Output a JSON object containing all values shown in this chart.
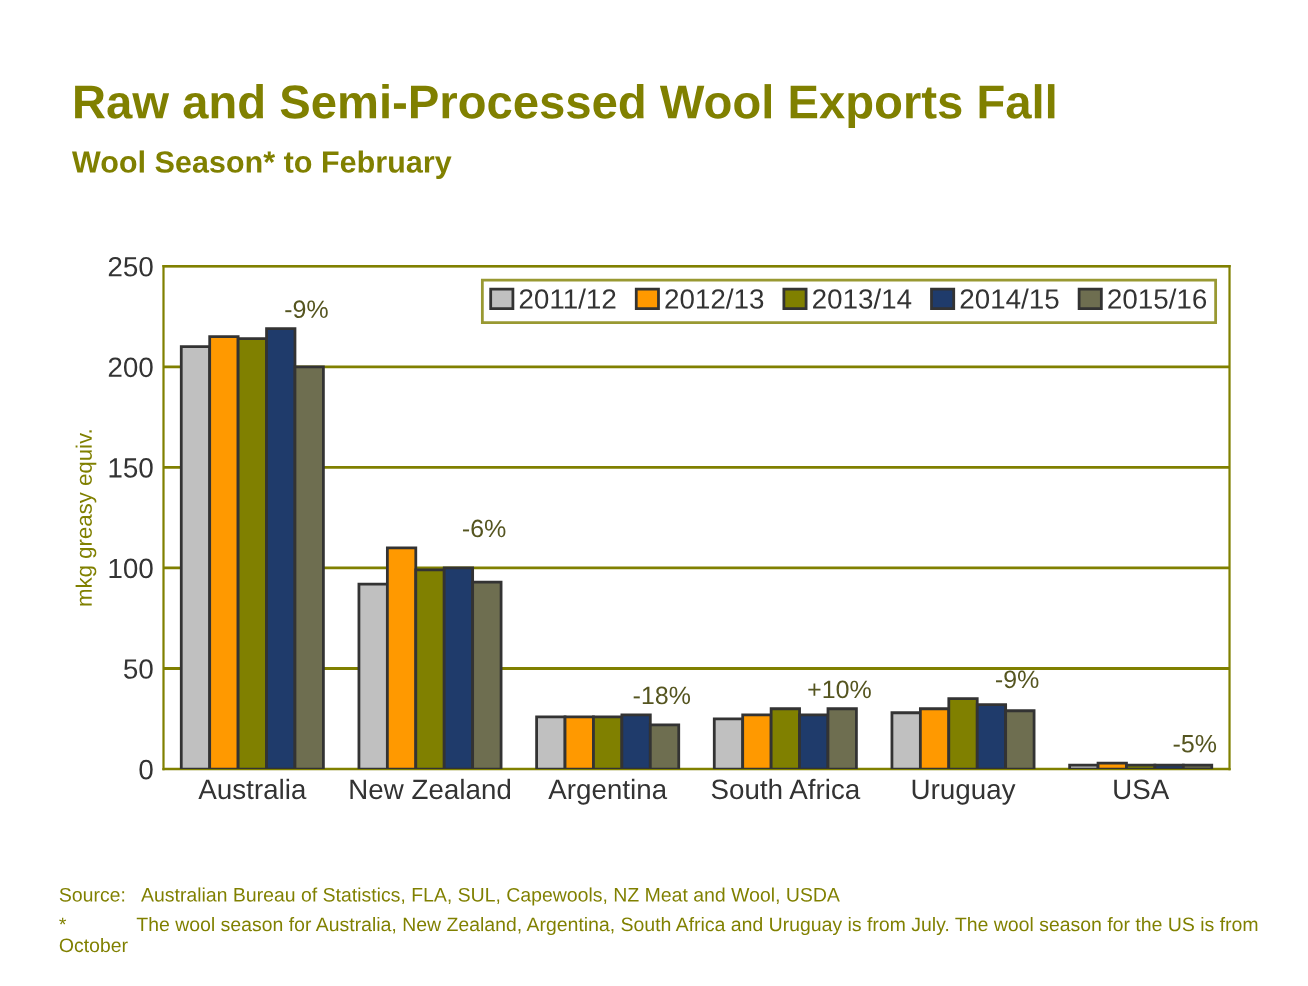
{
  "chart_data": {
    "type": "bar",
    "title": "Raw and Semi-Processed Wool Exports Fall",
    "subtitle": "Wool Season* to February",
    "ylabel": "mkg greasy equiv.",
    "categories": [
      "Australia",
      "New Zealand",
      "Argentina",
      "South Africa",
      "Uruguay",
      "USA"
    ],
    "series": [
      {
        "name": "2011/12",
        "color": "#c0c0c0",
        "values": [
          210,
          92,
          26,
          25,
          28,
          2
        ]
      },
      {
        "name": "2012/13",
        "color": "#ff9900",
        "values": [
          215,
          110,
          26,
          27,
          30,
          3
        ]
      },
      {
        "name": "2013/14",
        "color": "#808000",
        "values": [
          214,
          99,
          26,
          30,
          35,
          2
        ]
      },
      {
        "name": "2014/15",
        "color": "#1f3b6b",
        "values": [
          219,
          100,
          27,
          27,
          32,
          2
        ]
      },
      {
        "name": "2015/16",
        "color": "#6e6e50",
        "values": [
          200,
          93,
          22,
          30,
          29,
          2
        ]
      }
    ],
    "ylim": [
      0,
      250
    ],
    "yticks": [
      0,
      50,
      100,
      150,
      200,
      250
    ],
    "grid": "y",
    "legend": "top right",
    "annotations": [
      "-9%",
      "-6%",
      "-18%",
      "+10%",
      "-9%",
      "-5%",
      "Source:   Australian Bureau of Statistics, FLA, SUL, Capewools, NZ Meat and Wool, USDA",
      "*             The wool season for Australia, New Zealand, Argentina, South Africa and Uruguay is from July. The wool season for the US is from October"
    ]
  }
}
